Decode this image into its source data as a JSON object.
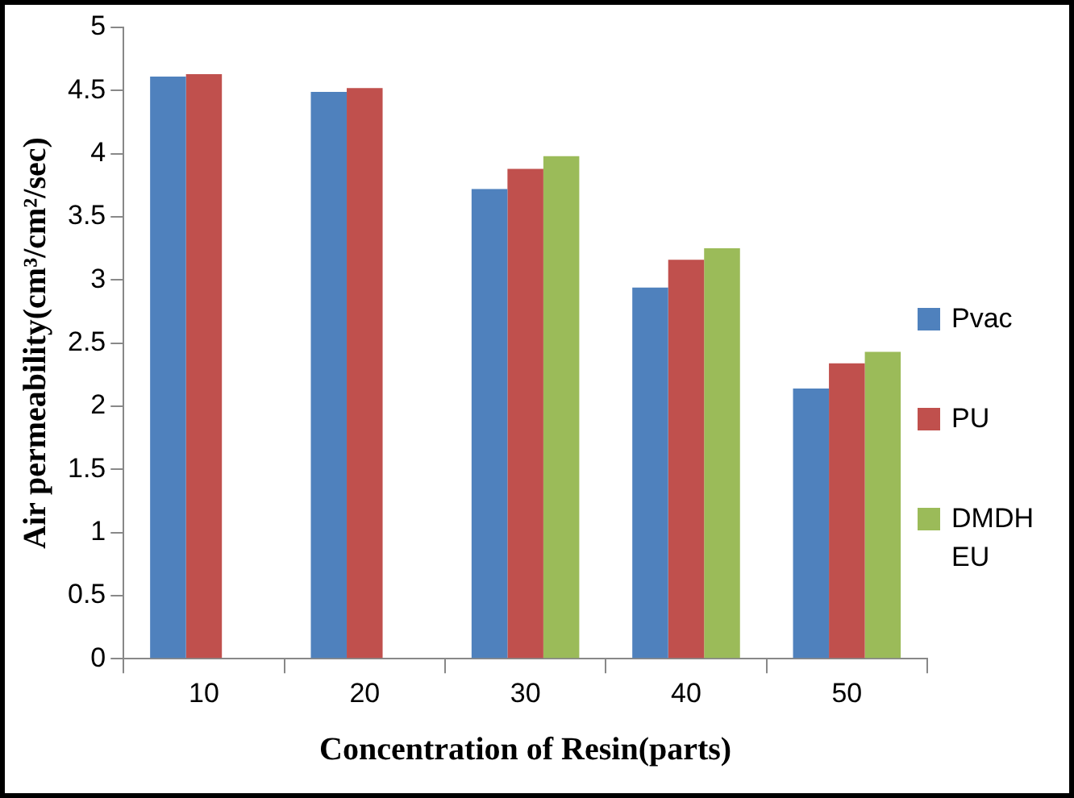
{
  "chart_data": {
    "type": "bar",
    "xlabel": "Concentration of Resin(parts)",
    "ylabel": "Air permeability(cm³/cm²/sec)",
    "categories": [
      "10",
      "20",
      "30",
      "40",
      "50"
    ],
    "series": [
      {
        "name": "Pvac",
        "color": "#4f81bd",
        "values": [
          4.61,
          4.49,
          3.72,
          2.94,
          2.14
        ]
      },
      {
        "name": "PU",
        "color": "#c0504d",
        "values": [
          4.63,
          4.52,
          3.88,
          3.16,
          2.34
        ]
      },
      {
        "name": "DMDH EU",
        "color": "#9bbb59",
        "values": [
          null,
          null,
          3.98,
          3.25,
          2.43
        ]
      }
    ],
    "ylim": [
      0,
      5
    ],
    "yticks": [
      0,
      0.5,
      1,
      1.5,
      2,
      2.5,
      3,
      3.5,
      4,
      4.5,
      5
    ],
    "grid": false,
    "legend": "right"
  }
}
